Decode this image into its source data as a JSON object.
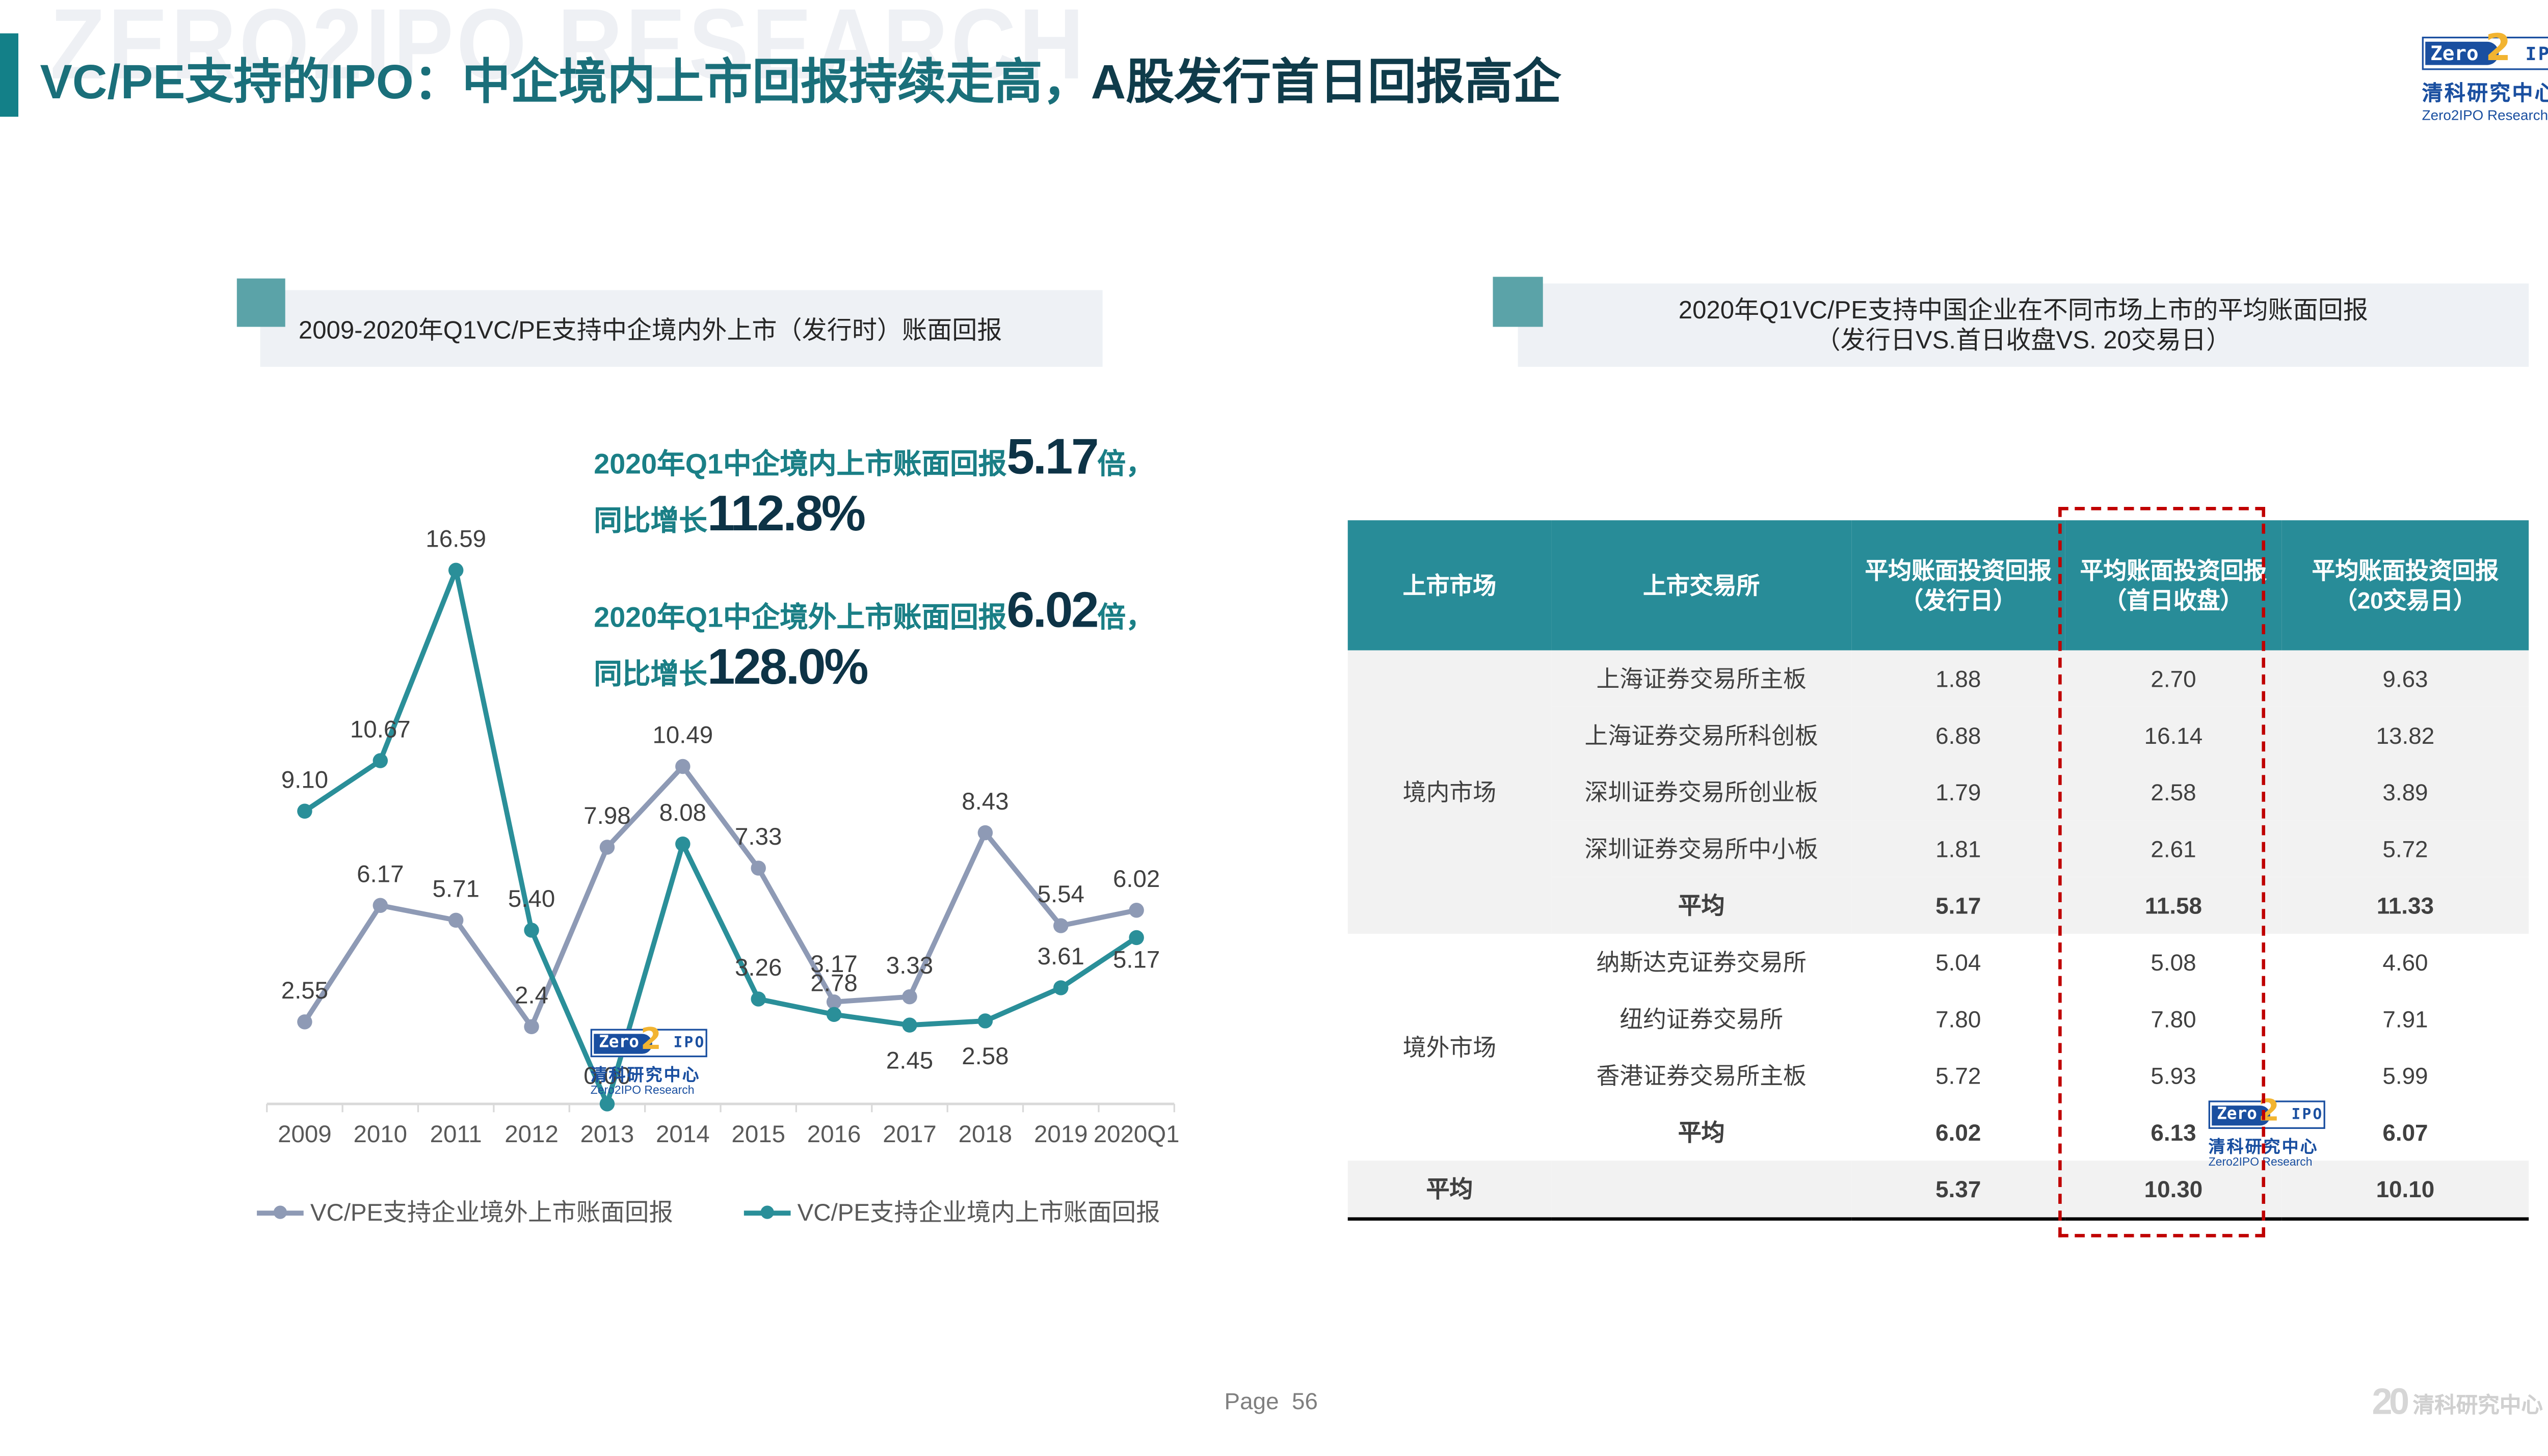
{
  "page": {
    "watermark": "ZERO2IPO RESEARCH",
    "title_part1": "VC/PE支持的IPO：中企境内上市回报持续走高，",
    "title_part2": "A股发行首日回报高企",
    "page_label": "Page",
    "page_number": "56"
  },
  "logo": {
    "zero": "Zero",
    "two": "2",
    "ipo": "IPO",
    "cn": "清科研究中心",
    "en": "Zero2IPO Research",
    "footer_twenty": "20",
    "footer_cn": "清科研究中心"
  },
  "colors": {
    "accent_teal": "#288c98",
    "domestic_line": "#2a8f99",
    "overseas_line": "#8e9ab5",
    "highlight_text": "#1a7f86",
    "highlight_number": "#0d3346",
    "red_box": "#c00000"
  },
  "left_section": {
    "header": "2009-2020年Q1VC/PE支持中企境内外上市（发行时）账面回报",
    "highlight1_text": "2020年Q1中企境内上市账面回报",
    "highlight1_value": "5.17",
    "highlight1_suffix": "倍，",
    "highlight1_growth_label": "同比增长",
    "highlight1_growth": "112.8%",
    "highlight2_text": "2020年Q1中企境外上市账面回报",
    "highlight2_value": "6.02",
    "highlight2_suffix": "倍，",
    "highlight2_growth_label": "同比增长",
    "highlight2_growth": "128.0%"
  },
  "chart_data": {
    "type": "line",
    "title": "2009-2020年Q1VC/PE支持中企境内外上市（发行时）账面回报",
    "xlabel": "",
    "ylabel": "",
    "categories": [
      "2009",
      "2010",
      "2011",
      "2012",
      "2013",
      "2014",
      "2015",
      "2016",
      "2017",
      "2018",
      "2019",
      "2020Q1"
    ],
    "series": [
      {
        "name": "VC/PE支持企业境外上市账面回报",
        "color": "#8e9ab5",
        "values": [
          2.55,
          6.17,
          5.71,
          2.4,
          7.98,
          10.49,
          7.33,
          3.17,
          3.33,
          8.43,
          5.54,
          6.02
        ],
        "labels": [
          "2.55",
          "6.17",
          "5.71",
          "2.4",
          "7.98",
          "10.49",
          "7.33",
          "3.17",
          "3.33",
          "8.43",
          "5.54",
          "6.02"
        ]
      },
      {
        "name": "VC/PE支持企业境内上市账面回报",
        "color": "#2a8f99",
        "values": [
          9.1,
          10.67,
          16.59,
          5.4,
          0.0,
          8.08,
          3.26,
          2.78,
          2.45,
          2.58,
          3.61,
          5.17
        ],
        "labels": [
          "9.10",
          "10.67",
          "16.59",
          "5.40",
          "0.00",
          "8.08",
          "3.26",
          "2.78",
          "2.45",
          "2.58",
          "3.61",
          "5.17"
        ]
      }
    ],
    "ylim": [
      0,
      18
    ],
    "grid": false,
    "legend_position": "bottom",
    "data_labels": true
  },
  "right_section": {
    "header_line1": "2020年Q1VC/PE支持中国企业在不同市场上市的平均账面回报",
    "header_line2": "（发行日VS.首日收盘VS. 20交易日）",
    "table": {
      "columns": [
        {
          "line1": "上市市场",
          "line2": ""
        },
        {
          "line1": "上市交易所",
          "line2": ""
        },
        {
          "line1": "平均账面投资回报",
          "line2": "（发行日）"
        },
        {
          "line1": "平均账面投资回报",
          "line2": "（首日收盘）"
        },
        {
          "line1": "平均账面投资回报",
          "line2": "（20交易日）"
        }
      ],
      "groups": [
        {
          "market": "境内市场",
          "rows": [
            {
              "exchange": "上海证券交易所主板",
              "issue_day": "1.88",
              "first_day": "2.70",
              "day20": "9.63"
            },
            {
              "exchange": "上海证券交易所科创板",
              "issue_day": "6.88",
              "first_day": "16.14",
              "day20": "13.82"
            },
            {
              "exchange": "深圳证券交易所创业板",
              "issue_day": "1.79",
              "first_day": "2.58",
              "day20": "3.89"
            },
            {
              "exchange": "深圳证券交易所中小板",
              "issue_day": "1.81",
              "first_day": "2.61",
              "day20": "5.72"
            }
          ],
          "average": {
            "label": "平均",
            "issue_day": "5.17",
            "first_day": "11.58",
            "day20": "11.33"
          }
        },
        {
          "market": "境外市场",
          "rows": [
            {
              "exchange": "纳斯达克证券交易所",
              "issue_day": "5.04",
              "first_day": "5.08",
              "day20": "4.60"
            },
            {
              "exchange": "纽约证券交易所",
              "issue_day": "7.80",
              "first_day": "7.80",
              "day20": "7.91"
            },
            {
              "exchange": "香港证券交易所主板",
              "issue_day": "5.72",
              "first_day": "5.93",
              "day20": "5.99"
            }
          ],
          "average": {
            "label": "平均",
            "issue_day": "6.02",
            "first_day": "6.13",
            "day20": "6.07"
          }
        }
      ],
      "total": {
        "label": "平均",
        "issue_day": "5.37",
        "first_day": "10.30",
        "day20": "10.10"
      }
    }
  }
}
